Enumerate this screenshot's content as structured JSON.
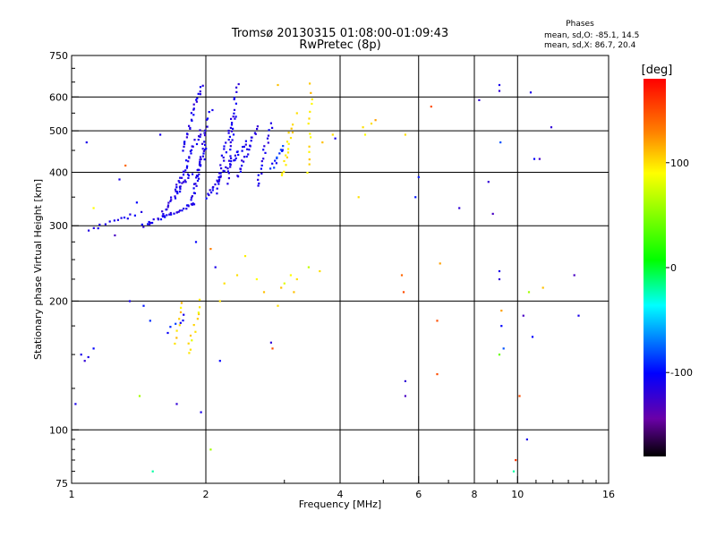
{
  "chart_data": {
    "type": "scatter",
    "title": "Tromsø 20130315 01:08:00-01:09:43",
    "subtitle": "RwPretec (8p)",
    "xlabel": "Frequency [MHz]",
    "ylabel": "Stationary phase Virtual Height [km]",
    "x_scale": "log",
    "y_scale": "log",
    "xlim": [
      1,
      16
    ],
    "ylim": [
      75,
      750
    ],
    "x_ticks": [
      1,
      2,
      4,
      6,
      8,
      10,
      16
    ],
    "x_tick_labels": [
      "1",
      "2",
      "4",
      "6",
      "8",
      "10",
      "16"
    ],
    "y_ticks": [
      75,
      100,
      200,
      300,
      400,
      500,
      600,
      750
    ],
    "y_tick_labels": [
      "75",
      "100",
      "200",
      "300",
      "400",
      "500",
      "600",
      "750"
    ],
    "grid": true,
    "info": {
      "heading": "Phases",
      "line_o": "mean, sd,O: -85.1, 14.5",
      "line_x": "mean, sd,X: 86.7, 20.4"
    },
    "colorbar": {
      "label": "[deg]",
      "range": [
        -180,
        180
      ],
      "ticks": [
        100,
        0,
        -100
      ],
      "tick_labels": [
        "100",
        "0",
        "-100"
      ]
    },
    "tracks": [
      {
        "from": [
          1.45,
          300
        ],
        "to": [
          1.9,
          340
        ],
        "n": 34,
        "phase": -110,
        "spread": 10
      },
      {
        "from": [
          1.6,
          320
        ],
        "to": [
          1.85,
          400
        ],
        "n": 26,
        "phase": -112,
        "spread": 10
      },
      {
        "from": [
          1.7,
          360
        ],
        "to": [
          1.95,
          500
        ],
        "n": 30,
        "phase": -110,
        "spread": 10
      },
      {
        "from": [
          1.78,
          450
        ],
        "to": [
          1.95,
          640
        ],
        "n": 26,
        "phase": -112,
        "spread": 10
      },
      {
        "from": [
          1.85,
          340
        ],
        "to": [
          2.0,
          460
        ],
        "n": 26,
        "phase": -110,
        "spread": 10
      },
      {
        "from": [
          1.9,
          380
        ],
        "to": [
          2.05,
          560
        ],
        "n": 20,
        "phase": -112,
        "spread": 10
      },
      {
        "from": [
          2.0,
          350
        ],
        "to": [
          2.45,
          470
        ],
        "n": 34,
        "phase": -110,
        "spread": 10
      },
      {
        "from": [
          2.1,
          360
        ],
        "to": [
          2.3,
          540
        ],
        "n": 24,
        "phase": -112,
        "spread": 10
      },
      {
        "from": [
          2.25,
          380
        ],
        "to": [
          2.35,
          640
        ],
        "n": 26,
        "phase": -110,
        "spread": 10
      },
      {
        "from": [
          2.35,
          390
        ],
        "to": [
          2.6,
          510
        ],
        "n": 22,
        "phase": -112,
        "spread": 10
      },
      {
        "from": [
          2.6,
          370
        ],
        "to": [
          2.8,
          520
        ],
        "n": 18,
        "phase": -110,
        "spread": 10
      },
      {
        "from": [
          2.8,
          410
        ],
        "to": [
          3.0,
          460
        ],
        "n": 12,
        "phase": -95,
        "spread": 20
      },
      {
        "from": [
          2.98,
          390
        ],
        "to": [
          3.12,
          520
        ],
        "n": 16,
        "phase": 100,
        "spread": 15
      },
      {
        "from": [
          3.4,
          400
        ],
        "to": [
          3.45,
          640
        ],
        "n": 14,
        "phase": 100,
        "spread": 15
      },
      {
        "from": [
          1.1,
          295
        ],
        "to": [
          1.42,
          320
        ],
        "n": 14,
        "phase": -110,
        "spread": 10
      },
      {
        "from": [
          1.72,
          160
        ],
        "to": [
          1.75,
          200
        ],
        "n": 8,
        "phase": 100,
        "spread": 15
      },
      {
        "from": [
          1.82,
          150
        ],
        "to": [
          1.95,
          200
        ],
        "n": 12,
        "phase": 95,
        "spread": 15
      },
      {
        "from": [
          1.65,
          170
        ],
        "to": [
          1.8,
          185
        ],
        "n": 6,
        "phase": -95,
        "spread": 15
      }
    ],
    "points": [
      {
        "x": 1.02,
        "y": 115,
        "phase": -110
      },
      {
        "x": 1.05,
        "y": 150,
        "phase": -110
      },
      {
        "x": 1.07,
        "y": 145,
        "phase": -120
      },
      {
        "x": 1.09,
        "y": 148,
        "phase": -110
      },
      {
        "x": 1.12,
        "y": 155,
        "phase": -100
      },
      {
        "x": 1.08,
        "y": 470,
        "phase": -110
      },
      {
        "x": 1.12,
        "y": 330,
        "phase": 90
      },
      {
        "x": 1.25,
        "y": 285,
        "phase": -130
      },
      {
        "x": 1.28,
        "y": 385,
        "phase": -110
      },
      {
        "x": 1.32,
        "y": 415,
        "phase": 140
      },
      {
        "x": 1.35,
        "y": 200,
        "phase": -110
      },
      {
        "x": 1.4,
        "y": 340,
        "phase": -100
      },
      {
        "x": 1.42,
        "y": 120,
        "phase": 60
      },
      {
        "x": 1.45,
        "y": 195,
        "phase": -95
      },
      {
        "x": 1.5,
        "y": 180,
        "phase": -90
      },
      {
        "x": 1.52,
        "y": 80,
        "phase": -20
      },
      {
        "x": 1.58,
        "y": 490,
        "phase": -110
      },
      {
        "x": 1.72,
        "y": 115,
        "phase": -120
      },
      {
        "x": 1.9,
        "y": 275,
        "phase": -100
      },
      {
        "x": 1.95,
        "y": 110,
        "phase": -110
      },
      {
        "x": 2.05,
        "y": 90,
        "phase": 60
      },
      {
        "x": 2.05,
        "y": 265,
        "phase": 130
      },
      {
        "x": 2.1,
        "y": 240,
        "phase": -110
      },
      {
        "x": 2.15,
        "y": 145,
        "phase": -100
      },
      {
        "x": 2.15,
        "y": 200,
        "phase": 100
      },
      {
        "x": 2.2,
        "y": 220,
        "phase": 100
      },
      {
        "x": 2.35,
        "y": 230,
        "phase": 100
      },
      {
        "x": 2.45,
        "y": 255,
        "phase": 95
      },
      {
        "x": 2.6,
        "y": 225,
        "phase": 90
      },
      {
        "x": 2.7,
        "y": 210,
        "phase": 110
      },
      {
        "x": 2.8,
        "y": 160,
        "phase": -120
      },
      {
        "x": 2.82,
        "y": 155,
        "phase": 150
      },
      {
        "x": 2.9,
        "y": 195,
        "phase": 100
      },
      {
        "x": 2.95,
        "y": 215,
        "phase": 110
      },
      {
        "x": 3.0,
        "y": 220,
        "phase": 80
      },
      {
        "x": 3.1,
        "y": 230,
        "phase": 90
      },
      {
        "x": 3.15,
        "y": 210,
        "phase": 110
      },
      {
        "x": 3.2,
        "y": 225,
        "phase": 100
      },
      {
        "x": 3.4,
        "y": 240,
        "phase": 70
      },
      {
        "x": 3.6,
        "y": 235,
        "phase": 100
      },
      {
        "x": 2.9,
        "y": 640,
        "phase": 110
      },
      {
        "x": 3.2,
        "y": 550,
        "phase": 100
      },
      {
        "x": 3.65,
        "y": 470,
        "phase": 110
      },
      {
        "x": 3.85,
        "y": 490,
        "phase": 100
      },
      {
        "x": 3.9,
        "y": 480,
        "phase": -110
      },
      {
        "x": 4.4,
        "y": 350,
        "phase": 100
      },
      {
        "x": 4.5,
        "y": 510,
        "phase": 100
      },
      {
        "x": 4.55,
        "y": 490,
        "phase": 90
      },
      {
        "x": 4.7,
        "y": 520,
        "phase": 100
      },
      {
        "x": 4.8,
        "y": 530,
        "phase": 120
      },
      {
        "x": 5.5,
        "y": 230,
        "phase": 140
      },
      {
        "x": 5.55,
        "y": 210,
        "phase": 150
      },
      {
        "x": 5.6,
        "y": 130,
        "phase": -120
      },
      {
        "x": 5.6,
        "y": 120,
        "phase": -130
      },
      {
        "x": 5.6,
        "y": 490,
        "phase": 100
      },
      {
        "x": 5.9,
        "y": 350,
        "phase": -95
      },
      {
        "x": 6.0,
        "y": 390,
        "phase": -95
      },
      {
        "x": 6.4,
        "y": 570,
        "phase": 150
      },
      {
        "x": 6.6,
        "y": 180,
        "phase": 150
      },
      {
        "x": 6.6,
        "y": 135,
        "phase": 150
      },
      {
        "x": 6.7,
        "y": 245,
        "phase": 120
      },
      {
        "x": 7.4,
        "y": 330,
        "phase": -120
      },
      {
        "x": 8.6,
        "y": 380,
        "phase": -120
      },
      {
        "x": 8.8,
        "y": 320,
        "phase": -130
      },
      {
        "x": 9.1,
        "y": 640,
        "phase": -110
      },
      {
        "x": 9.1,
        "y": 620,
        "phase": -120
      },
      {
        "x": 9.15,
        "y": 470,
        "phase": -80
      },
      {
        "x": 9.1,
        "y": 235,
        "phase": -110
      },
      {
        "x": 9.1,
        "y": 225,
        "phase": -120
      },
      {
        "x": 9.2,
        "y": 190,
        "phase": 120
      },
      {
        "x": 9.2,
        "y": 175,
        "phase": -100
      },
      {
        "x": 9.3,
        "y": 155,
        "phase": -80
      },
      {
        "x": 9.1,
        "y": 150,
        "phase": 40
      },
      {
        "x": 9.8,
        "y": 80,
        "phase": -20
      },
      {
        "x": 9.9,
        "y": 85,
        "phase": 160
      },
      {
        "x": 10.1,
        "y": 120,
        "phase": 150
      },
      {
        "x": 10.3,
        "y": 185,
        "phase": -130
      },
      {
        "x": 10.5,
        "y": 95,
        "phase": -110
      },
      {
        "x": 10.6,
        "y": 210,
        "phase": 60
      },
      {
        "x": 10.7,
        "y": 615,
        "phase": -110
      },
      {
        "x": 10.8,
        "y": 165,
        "phase": -100
      },
      {
        "x": 10.9,
        "y": 430,
        "phase": -100
      },
      {
        "x": 11.2,
        "y": 430,
        "phase": -130
      },
      {
        "x": 11.4,
        "y": 215,
        "phase": 110
      },
      {
        "x": 11.9,
        "y": 510,
        "phase": -120
      },
      {
        "x": 13.4,
        "y": 230,
        "phase": -130
      },
      {
        "x": 13.7,
        "y": 185,
        "phase": -110
      },
      {
        "x": 8.2,
        "y": 590,
        "phase": -120
      }
    ]
  }
}
